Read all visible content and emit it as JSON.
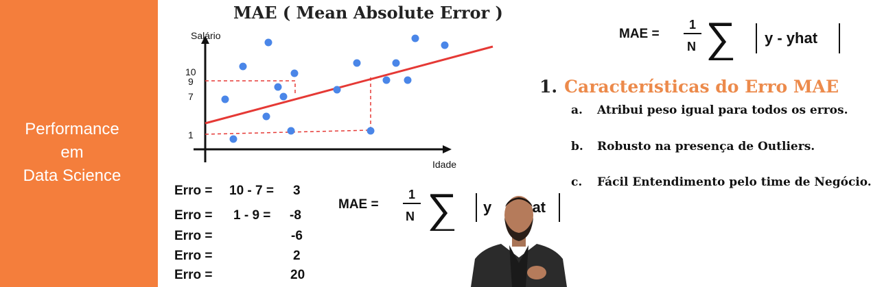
{
  "sidebar": {
    "lines": [
      "Performance",
      "em",
      "Data Science"
    ]
  },
  "slide": {
    "title": "MAE ( Mean Absolute Error )",
    "formula_top": {
      "lhs": "MAE =",
      "num": "1",
      "den": "N",
      "abs": "y - yhat"
    },
    "formula_mid": {
      "lhs": "MAE =",
      "num": "1",
      "den": "N",
      "visible_y": "y",
      "visible_hat": "hat"
    },
    "plot": {
      "y_axis_label": "Salário",
      "x_axis_label": "Idade",
      "y_ticks": [
        "10",
        "9",
        "7",
        "1"
      ]
    },
    "errors": [
      {
        "label": "Erro =",
        "expr": "10 - 7 =",
        "value": "3"
      },
      {
        "label": "Erro =",
        "expr": "1 - 9 =",
        "value": "-8"
      },
      {
        "label": "Erro =",
        "expr": "",
        "value": "-6"
      },
      {
        "label": "Erro =",
        "expr": "",
        "value": "2"
      },
      {
        "label": "Erro =",
        "expr": "",
        "value": "20"
      }
    ],
    "section": {
      "number": "1.",
      "title": "Características do Erro MAE",
      "items": [
        {
          "letter": "a.",
          "text": "Atribui peso igual para todos os erros."
        },
        {
          "letter": "b.",
          "text": "Robusto na presença de Outliers."
        },
        {
          "letter": "c.",
          "text": "Fácil Entendimento pelo time de Negócio."
        }
      ]
    }
  },
  "colors": {
    "sidebar": "#f47e3c",
    "accent": "#ec8a4b",
    "points": "#4a86e8",
    "line": "#e53935"
  }
}
